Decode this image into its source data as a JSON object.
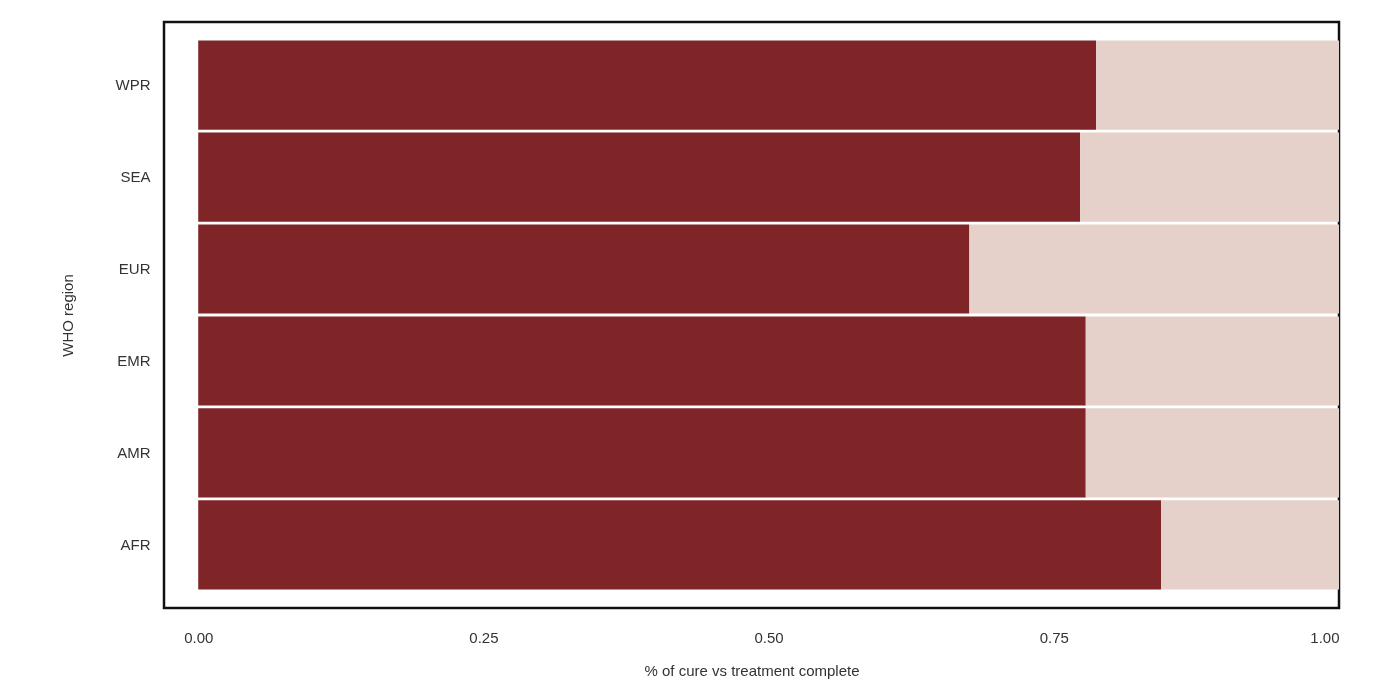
{
  "chart_data": {
    "type": "bar",
    "orientation": "horizontal",
    "stacked": true,
    "xlabel": "% of cure vs treatment complete",
    "ylabel": "WHO region",
    "categories": [
      "WPR",
      "SEA",
      "EUR",
      "EMR",
      "AMR",
      "AFR"
    ],
    "series": [
      {
        "color": "#7f2527",
        "values": [
          0.787,
          0.773,
          0.676,
          0.778,
          0.778,
          0.844
        ]
      },
      {
        "color": "#e6d1ca",
        "values": [
          0.213,
          0.227,
          0.324,
          0.222,
          0.222,
          0.156
        ]
      }
    ],
    "xlim": [
      -0.03,
      1.0
    ],
    "xticks": [
      {
        "value": 0,
        "label": "0.00"
      },
      {
        "value": 0.25,
        "label": "0.25"
      },
      {
        "value": 0.5,
        "label": "0.50"
      },
      {
        "value": 0.75,
        "label": "0.75"
      },
      {
        "value": 1,
        "label": "1.00"
      }
    ],
    "grid": false
  }
}
